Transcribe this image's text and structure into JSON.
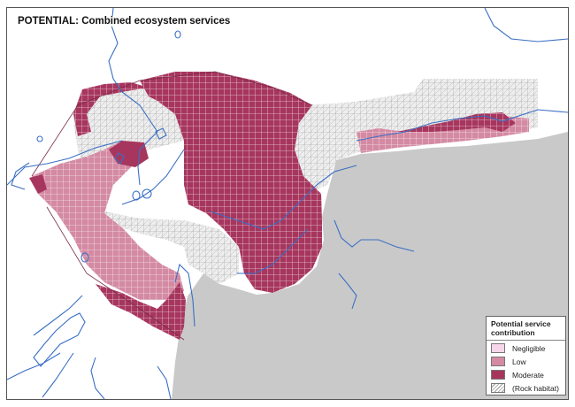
{
  "map": {
    "title": "POTENTIAL: Combined ecosystem services",
    "colors": {
      "land": "#c9c9c9",
      "water_line": "#3a6fc4",
      "rock": "#eeeeee",
      "low": "#d48aa3",
      "moderate": "#a7365e"
    }
  },
  "legend": {
    "title": "Potential service contribution",
    "items": [
      {
        "label": "Negligible",
        "color": "#f6d6ea"
      },
      {
        "label": "Low",
        "color": "#d48aa3"
      },
      {
        "label": "Moderate",
        "color": "#a7365e"
      },
      {
        "label": "(Rock habitat)",
        "color": "#eeeeee"
      }
    ]
  }
}
